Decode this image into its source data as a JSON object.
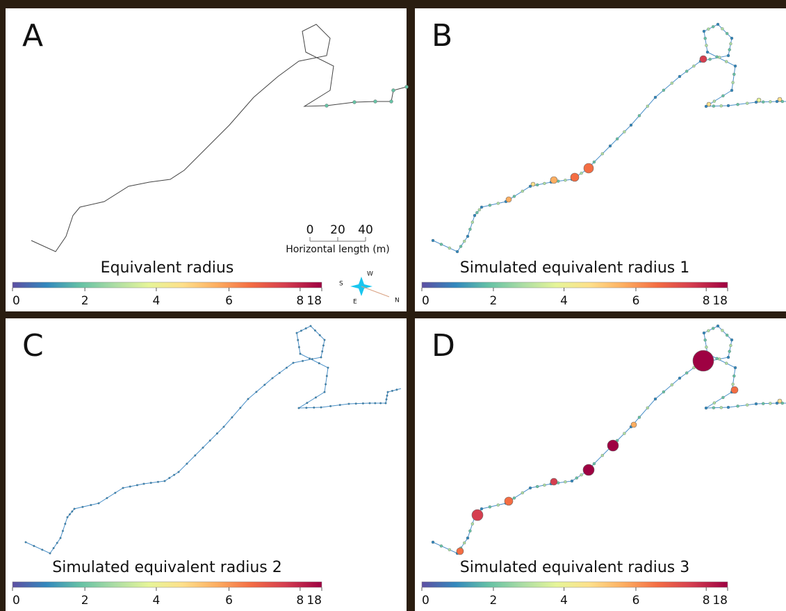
{
  "panels": [
    {
      "label": "A",
      "title": "Equivalent radius"
    },
    {
      "label": "B",
      "title": "Simulated equivalent radius 1"
    },
    {
      "label": "C",
      "title": "Simulated equivalent radius 2"
    },
    {
      "label": "D",
      "title": "Simulated equivalent radius 3"
    }
  ],
  "colorbar_ticks": [
    "0",
    "2",
    "4",
    "6",
    "8",
    "18"
  ],
  "scale_bar": {
    "ticks": [
      "0",
      "20",
      "40"
    ],
    "label": "Horizontal length (m)"
  },
  "compass": {
    "s": "S",
    "w": "W",
    "e": "E",
    "n": "N"
  }
}
